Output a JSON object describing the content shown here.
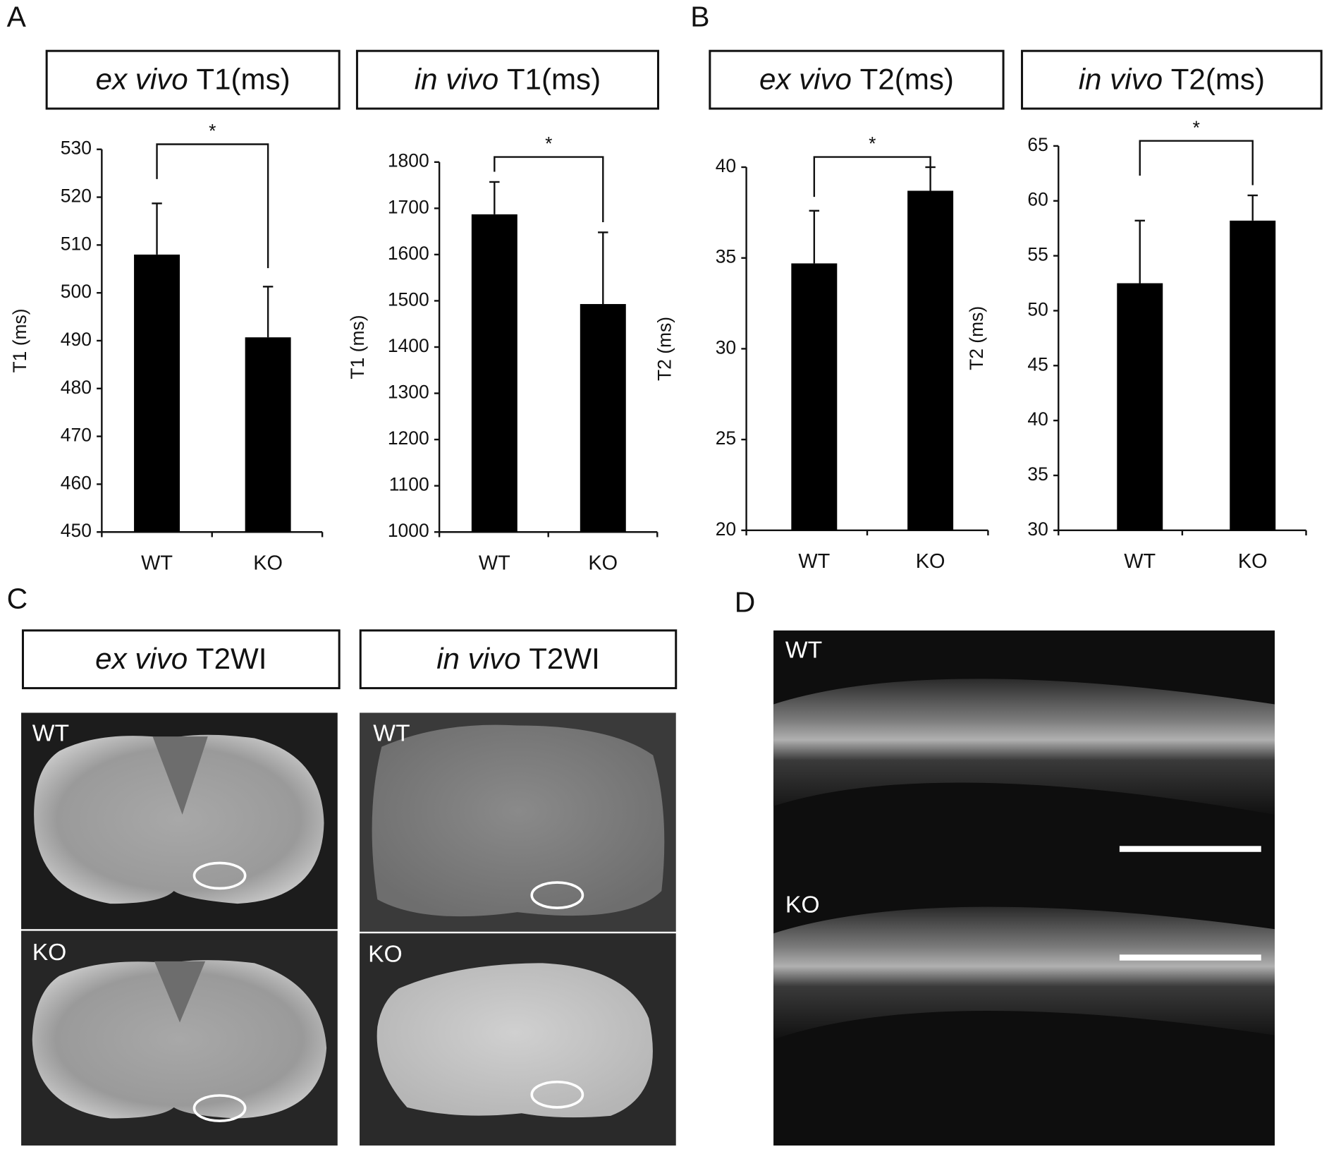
{
  "panel_labels": [
    "A",
    "B",
    "C",
    "D"
  ],
  "chart_data": [
    {
      "type": "bar",
      "title": [
        "ex vivo",
        "T1(ms)"
      ],
      "ylabel": "T1 (ms)",
      "categories": [
        "WT",
        "KO"
      ],
      "values": [
        508,
        490.7
      ],
      "errors": [
        10.7,
        10.6
      ],
      "color": "#000000",
      "ylim": [
        450,
        530
      ],
      "yticks": [
        450,
        460,
        470,
        480,
        490,
        500,
        510,
        520,
        530
      ],
      "annotation": "*"
    },
    {
      "type": "bar",
      "title": [
        "in vivo",
        "T1(ms)"
      ],
      "ylabel": "T1 (ms)",
      "categories": [
        "WT",
        "KO"
      ],
      "values": [
        1687,
        1493
      ],
      "errors": [
        70,
        155
      ],
      "color": "#000000",
      "ylim": [
        1000,
        1800
      ],
      "yticks": [
        1000,
        1100,
        1200,
        1300,
        1400,
        1500,
        1600,
        1700,
        1800
      ],
      "annotation": "*"
    },
    {
      "type": "bar",
      "title": [
        "ex vivo",
        "T2(ms)"
      ],
      "ylabel": "T2 (ms)",
      "categories": [
        "WT",
        "KO"
      ],
      "values": [
        34.7,
        38.7
      ],
      "errors": [
        2.9,
        1.3
      ],
      "color": "#000000",
      "ylim": [
        20,
        40
      ],
      "yticks": [
        20,
        25,
        30,
        35,
        40
      ],
      "annotation": "*"
    },
    {
      "type": "bar",
      "title": [
        "in vivo",
        "T2(ms)"
      ],
      "ylabel": "T2 (ms)",
      "categories": [
        "WT",
        "KO"
      ],
      "values": [
        52.5,
        58.2
      ],
      "errors": [
        5.7,
        2.3
      ],
      "color": "#000000",
      "ylim": [
        30,
        65
      ],
      "yticks": [
        30,
        35,
        40,
        45,
        50,
        55,
        60,
        65
      ],
      "annotation": "*"
    }
  ],
  "images": {
    "titles": [
      [
        "ex vivo",
        "T2WI"
      ],
      [
        "in vivo",
        "T2WI"
      ]
    ],
    "labels": [
      "WT",
      "KO"
    ]
  }
}
